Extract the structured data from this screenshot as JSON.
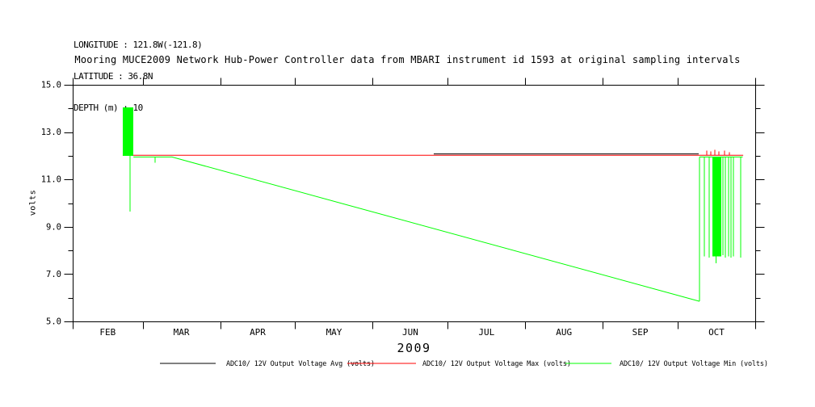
{
  "header": {
    "longitude": "LONGITUDE : 121.8W(-121.8)",
    "latitude": "LATITUDE : 36.8N",
    "depth": "DEPTH (m) : 10"
  },
  "chart_data": {
    "type": "line",
    "title": "Mooring MUCE2009 Network Hub-Power Controller data from MBARI instrument id 1593 at original sampling intervals",
    "xlabel": "2009",
    "ylabel": "volts",
    "ylim": [
      5.0,
      15.0
    ],
    "ytick_major": [
      5.0,
      7.0,
      9.0,
      11.0,
      13.0,
      15.0
    ],
    "ytick_labels": [
      "5.0",
      "7.0",
      "9.0",
      "11.0",
      "13.0",
      "15.0"
    ],
    "ytick_minor": [
      6.0,
      8.0,
      10.0,
      12.0,
      14.0
    ],
    "grid": "off",
    "legend_position": "bottom",
    "x_axis_unit": "days from Feb 1 2009",
    "xlim_days": [
      0,
      273
    ],
    "month_labels": [
      "FEB",
      "MAR",
      "APR",
      "MAY",
      "JUN",
      "JUL",
      "AUG",
      "SEP",
      "OCT"
    ],
    "month_boundaries_days": [
      0,
      28,
      59,
      89,
      120,
      150,
      181,
      212,
      242,
      273
    ],
    "series": [
      {
        "name": "ADC10/ 12V Output Voltage Avg (volts)",
        "short": "avg",
        "color": "#000000",
        "elements": [
          {
            "type": "polyline",
            "points": [
              [
                144.4,
                12.08
              ],
              [
                250.4,
                12.08
              ]
            ]
          }
        ]
      },
      {
        "name": "ADC10/ 12V Output Voltage Max (volts)",
        "short": "max",
        "color": "#ff0000",
        "elements": [
          {
            "type": "polyline",
            "points": [
              [
                20.0,
                12.02
              ],
              [
                268.2,
                12.02
              ]
            ]
          },
          {
            "type": "vline",
            "day": 253.6,
            "v0": 12.02,
            "v1": 12.22
          },
          {
            "type": "vline",
            "day": 255.2,
            "v0": 12.02,
            "v1": 12.18
          },
          {
            "type": "vline",
            "day": 256.8,
            "v0": 12.02,
            "v1": 12.25
          },
          {
            "type": "vline",
            "day": 258.5,
            "v0": 12.02,
            "v1": 12.18
          },
          {
            "type": "vline",
            "day": 260.7,
            "v0": 12.02,
            "v1": 12.22
          },
          {
            "type": "vline",
            "day": 262.6,
            "v0": 12.02,
            "v1": 12.15
          }
        ]
      },
      {
        "name": "ADC10/ 12V Output Voltage Min (volts)",
        "short": "min",
        "color": "#00ff00",
        "elements": [
          {
            "type": "rect",
            "days": [
              20.0,
              24.3
            ],
            "v0": 12.0,
            "v1": 14.05
          },
          {
            "type": "vline",
            "day": 22.9,
            "v0": 9.65,
            "v1": 12.0
          },
          {
            "type": "polyline",
            "points": [
              [
                24.3,
                11.95
              ],
              [
                39.7,
                11.95
              ],
              [
                250.7,
                5.85
              ]
            ]
          },
          {
            "type": "vline",
            "day": 33.0,
            "v0": 11.7,
            "v1": 11.95
          },
          {
            "type": "vline",
            "day": 250.7,
            "v0": 5.85,
            "v1": 11.95
          },
          {
            "type": "polyline",
            "points": [
              [
                250.7,
                11.95
              ],
              [
                268.0,
                11.95
              ]
            ]
          },
          {
            "type": "vline",
            "day": 252.6,
            "v0": 7.75,
            "v1": 11.95
          },
          {
            "type": "vline",
            "day": 254.6,
            "v0": 7.7,
            "v1": 11.95
          },
          {
            "type": "rect",
            "days": [
              255.9,
              259.4
            ],
            "v0": 7.75,
            "v1": 11.95
          },
          {
            "type": "vline",
            "day": 257.3,
            "v0": 7.45,
            "v1": 11.95
          },
          {
            "type": "vline",
            "day": 260.1,
            "v0": 7.8,
            "v1": 11.95
          },
          {
            "type": "vline",
            "day": 261.0,
            "v0": 7.7,
            "v1": 11.95
          },
          {
            "type": "vline",
            "day": 262.3,
            "v0": 7.75,
            "v1": 11.95
          },
          {
            "type": "vline",
            "day": 263.3,
            "v0": 7.7,
            "v1": 11.95
          },
          {
            "type": "vline",
            "day": 264.3,
            "v0": 7.75,
            "v1": 11.95
          },
          {
            "type": "vline",
            "day": 267.2,
            "v0": 7.7,
            "v1": 11.95
          }
        ]
      }
    ]
  }
}
